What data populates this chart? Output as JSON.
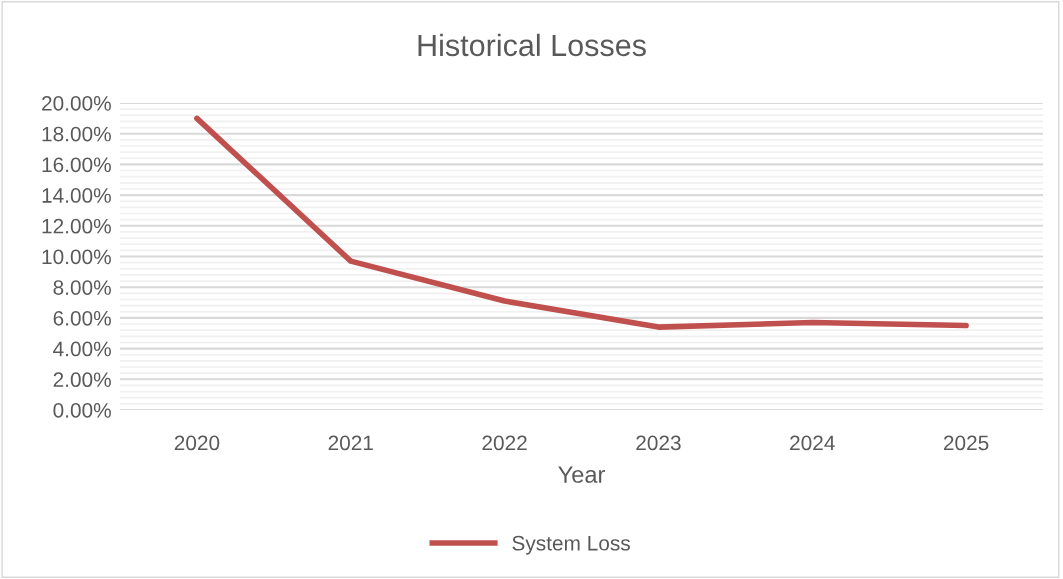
{
  "chart_data": {
    "type": "line",
    "title": "Historical Losses",
    "xlabel": "Year",
    "categories": [
      "2020",
      "2021",
      "2022",
      "2023",
      "2024",
      "2025"
    ],
    "series": [
      {
        "name": "System Loss",
        "color": "#c0504d",
        "values": [
          19.0,
          9.7,
          7.1,
          5.4,
          5.7,
          5.5
        ]
      }
    ],
    "ylim": [
      0,
      20
    ],
    "yticks": [
      {
        "value": 0,
        "label": "0.00%"
      },
      {
        "value": 2,
        "label": "2.00%"
      },
      {
        "value": 4,
        "label": "4.00%"
      },
      {
        "value": 6,
        "label": "6.00%"
      },
      {
        "value": 8,
        "label": "8.00%"
      },
      {
        "value": 10,
        "label": "10.00%"
      },
      {
        "value": 12,
        "label": "12.00%"
      },
      {
        "value": 14,
        "label": "14.00%"
      },
      {
        "value": 16,
        "label": "16.00%"
      },
      {
        "value": 18,
        "label": "18.00%"
      },
      {
        "value": 20,
        "label": "20.00%"
      }
    ],
    "grid": "y",
    "legend": "bottom",
    "marker": "none",
    "line_style": "solid"
  }
}
